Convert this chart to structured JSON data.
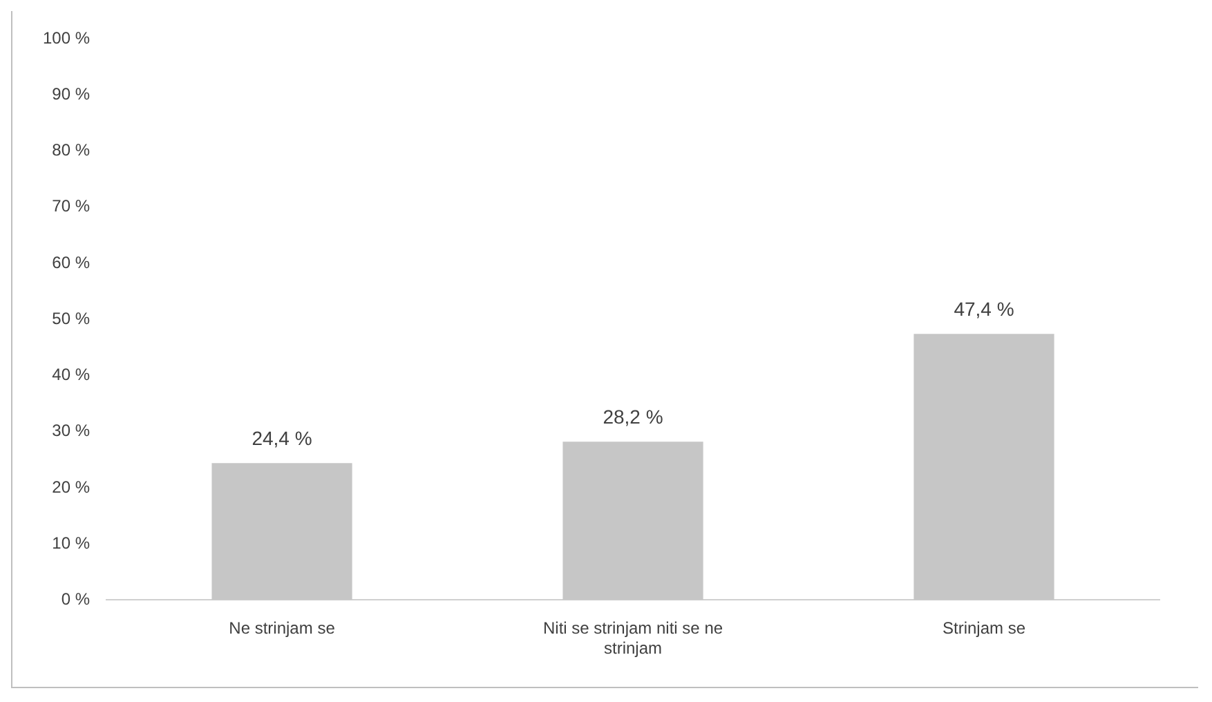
{
  "chart_data": {
    "type": "bar",
    "categories": [
      "Ne strinjam se",
      "Niti se strinjam niti se ne strinjam",
      "Strinjam se"
    ],
    "values": [
      24.4,
      28.2,
      47.4
    ],
    "value_labels": [
      "24,4 %",
      "28,2 %",
      "47,4 %"
    ],
    "color": "#c6c6c6",
    "ylim": [
      0,
      100
    ],
    "yticks": [
      {
        "value": 0,
        "label": "0 %"
      },
      {
        "value": 10,
        "label": "10 %"
      },
      {
        "value": 20,
        "label": "20 %"
      },
      {
        "value": 30,
        "label": "30 %"
      },
      {
        "value": 40,
        "label": "40 %"
      },
      {
        "value": 50,
        "label": "50 %"
      },
      {
        "value": 60,
        "label": "60 %"
      },
      {
        "value": 70,
        "label": "70 %"
      },
      {
        "value": 80,
        "label": "80 %"
      },
      {
        "value": 90,
        "label": "90 %"
      },
      {
        "value": 100,
        "label": "100 %"
      }
    ],
    "grid": false,
    "legend": false
  }
}
